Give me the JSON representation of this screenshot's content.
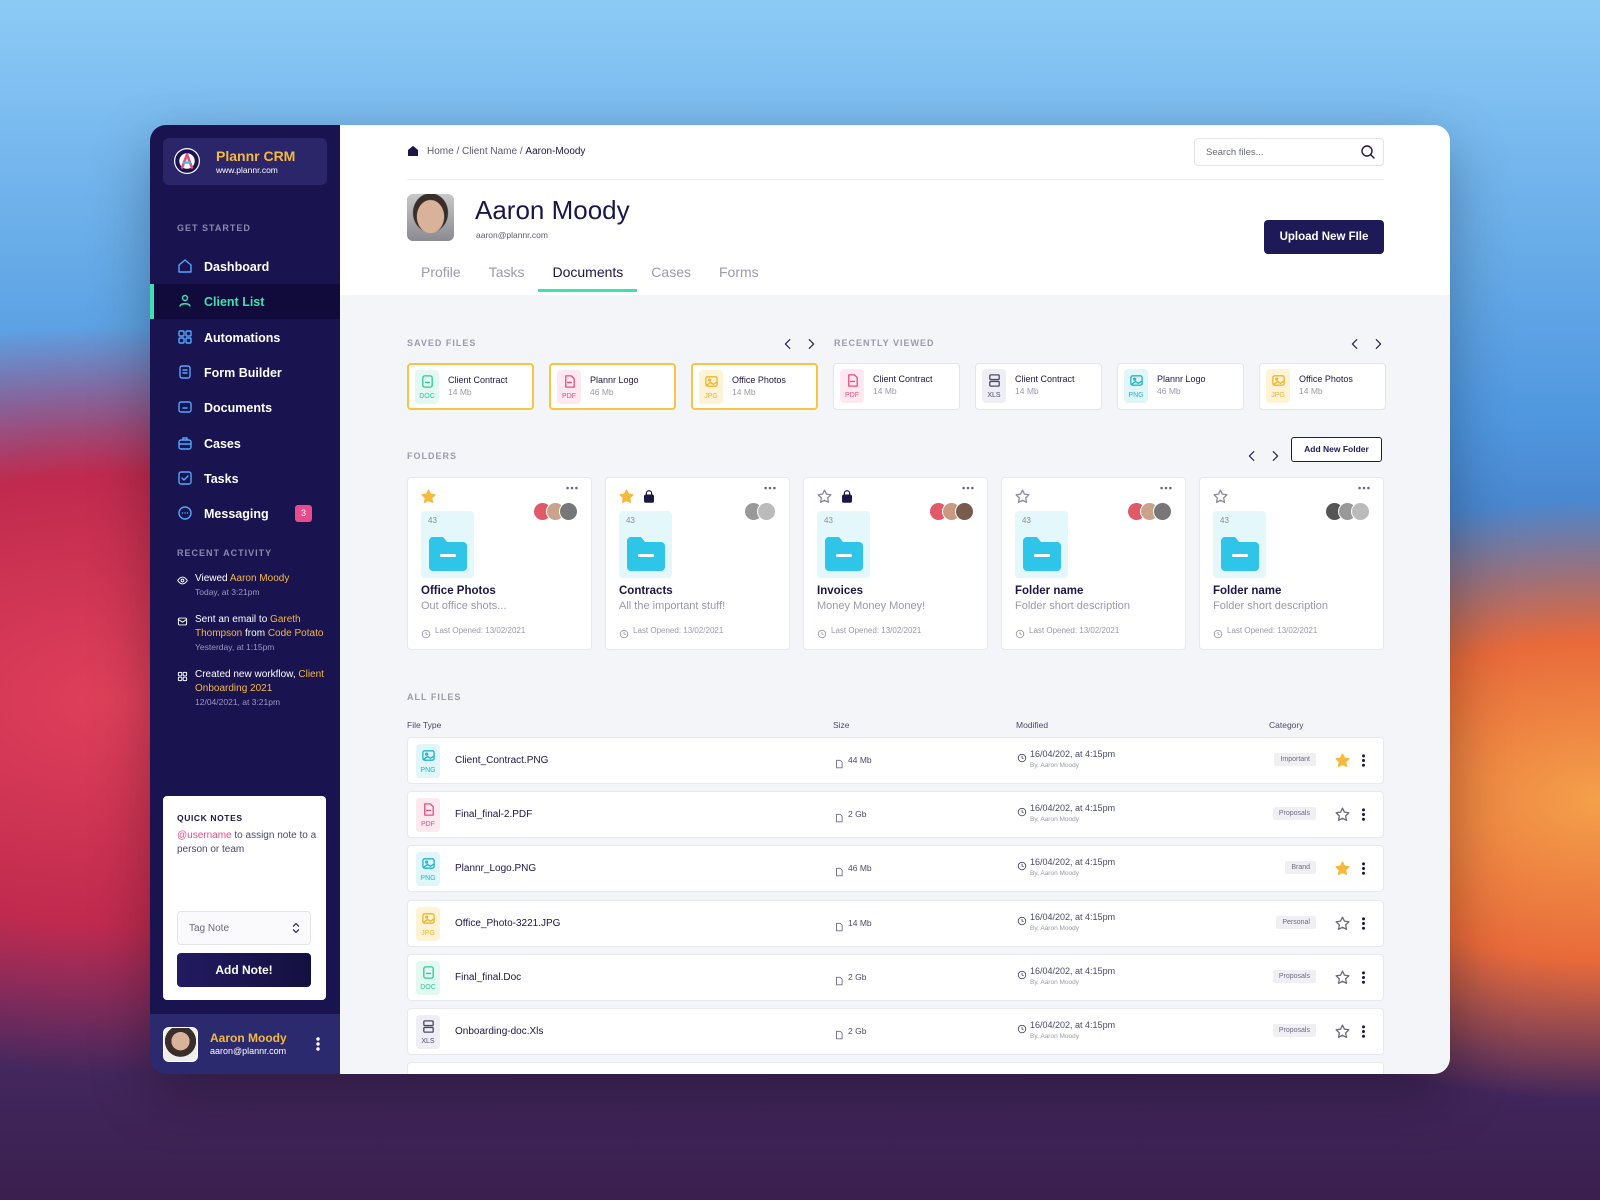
{
  "brand": {
    "name": "Plannr CRM",
    "url": "www.plannr.com"
  },
  "sidebar": {
    "section_label": "GET STARTED",
    "nav": [
      {
        "label": "Dashboard"
      },
      {
        "label": "Client List",
        "active": true
      },
      {
        "label": "Automations"
      },
      {
        "label": "Form Builder"
      },
      {
        "label": "Documents"
      },
      {
        "label": "Cases"
      },
      {
        "label": "Tasks"
      },
      {
        "label": "Messaging",
        "badge": 3
      }
    ]
  },
  "recent_activity": {
    "label": "RECENT ACTIVITY",
    "items": [
      {
        "text": [
          {
            "t": "Viewed "
          },
          {
            "t": "Aaron Moody",
            "highlight": true
          }
        ],
        "time": "Today, at 3:21pm"
      },
      {
        "text": [
          {
            "t": "Sent an email to "
          },
          {
            "t": "Gareth Thompson",
            "highlight": true
          },
          {
            "t": " from "
          },
          {
            "t": "Code Potato",
            "highlight": true
          }
        ],
        "time": "Yesterday, at 1:15pm"
      },
      {
        "text": [
          {
            "t": "Created new workflow, "
          },
          {
            "t": "Client Onboarding 2021",
            "highlight": true
          }
        ],
        "time": "12/04/2021, at 3:21pm"
      }
    ]
  },
  "quick_notes": {
    "title": "QUICK NOTES",
    "mention": "@username",
    "text": " to assign note to a person or team",
    "select": "Tag Note",
    "button": "Add Note!"
  },
  "user": {
    "name": "Aaron Moody",
    "email": "aaron@plannr.com"
  },
  "breadcrumb": {
    "items": [
      "Home",
      "Client Name",
      "Aaron-Moody"
    ],
    "separator": " / "
  },
  "search": {
    "placeholder": "Search files..."
  },
  "profile": {
    "name": "Aaron Moody",
    "email": "aaron@plannr.com",
    "button": "Upload New FIle"
  },
  "tabs": {
    "items": [
      "Profile",
      "Tasks",
      "Documents",
      "Cases",
      "Forms"
    ],
    "active": "Documents"
  },
  "saved_files": {
    "label": "SAVED FILES",
    "items": [
      {
        "name": "Client Contract",
        "size": "14 Mb",
        "ext": "DOC"
      },
      {
        "name": "Plannr Logo",
        "size": "46 Mb",
        "ext": "PDF"
      },
      {
        "name": "Office Photos",
        "size": "14 Mb",
        "ext": "JPG"
      }
    ]
  },
  "recently_viewed": {
    "label": "RECENTLY VIEWED",
    "items": [
      {
        "name": "Client Contract",
        "size": "14 Mb",
        "ext": "PDF"
      },
      {
        "name": "Client Contract",
        "size": "14 Mb",
        "ext": "XLS"
      },
      {
        "name": "Plannr Logo",
        "size": "46 Mb",
        "ext": "PNG"
      },
      {
        "name": "Office Photos",
        "size": "14 Mb",
        "ext": "JPG"
      }
    ]
  },
  "folders": {
    "label": "FOLDERS",
    "button": "Add New Folder",
    "items": [
      {
        "count": 43,
        "name": "Office Photos",
        "description": "Out office shots...",
        "last_opened": "Last Opened: 13/02/2021",
        "starred": true,
        "locked": false
      },
      {
        "count": 43,
        "name": "Contracts",
        "description": "All the important stuff!",
        "last_opened": "Last Opened: 13/02/2021",
        "starred": true,
        "locked": true
      },
      {
        "count": 43,
        "name": "Invoices",
        "description": "Money Money Money!",
        "last_opened": "Last Opened: 13/02/2021",
        "starred": false,
        "locked": true
      },
      {
        "count": 43,
        "name": "Folder name",
        "description": "Folder short description",
        "last_opened": "Last Opened: 13/02/2021",
        "starred": false,
        "locked": false
      },
      {
        "count": 43,
        "name": "Folder name",
        "description": "Folder short description",
        "last_opened": "Last Opened: 13/02/2021",
        "starred": false,
        "locked": false
      }
    ]
  },
  "all_files": {
    "label": "ALL FILES",
    "columns": [
      "File Type",
      "Size",
      "Modified",
      "Category"
    ],
    "rows": [
      {
        "ext": "PNG",
        "name": "Client_Contract.PNG",
        "size": "44 Mb",
        "modified": "16/04/202, at 4:15pm",
        "by": "By, Aaron Moody",
        "category": "Important",
        "starred": true
      },
      {
        "ext": "PDF",
        "name": "Final_final-2.PDF",
        "size": "2 Gb",
        "modified": "16/04/202, at 4:15pm",
        "by": "By, Aaron Moody",
        "category": "Proposals",
        "starred": false
      },
      {
        "ext": "PNG",
        "name": "Plannr_Logo.PNG",
        "size": "46 Mb",
        "modified": "16/04/202, at 4:15pm",
        "by": "By, Aaron Moody",
        "category": "Brand",
        "starred": true
      },
      {
        "ext": "JPG",
        "name": "Office_Photo-3221.JPG",
        "size": "14 Mb",
        "modified": "16/04/202, at 4:15pm",
        "by": "By, Aaron Moody",
        "category": "Personal",
        "starred": false
      },
      {
        "ext": "DOC",
        "name": "Final_final.Doc",
        "size": "2 Gb",
        "modified": "16/04/202, at 4:15pm",
        "by": "By, Aaron Moody",
        "category": "Proposals",
        "starred": false
      },
      {
        "ext": "XLS",
        "name": "Onboarding-doc.Xls",
        "size": "2 Gb",
        "modified": "16/04/202, at 4:15pm",
        "by": "By, Aaron Moody",
        "category": "Proposals",
        "starred": false
      }
    ]
  }
}
